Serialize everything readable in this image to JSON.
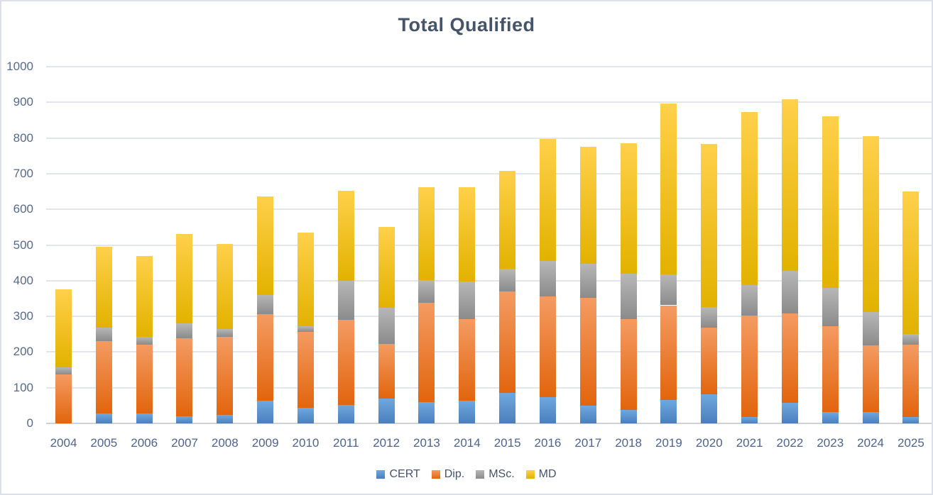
{
  "chart": {
    "title": "Total Qualified"
  },
  "chart_data": {
    "type": "bar",
    "stacked": true,
    "title": "Total Qualified",
    "xlabel": "",
    "ylabel": "",
    "ylim": [
      0,
      1000
    ],
    "ytick_interval": 100,
    "grid": true,
    "legend_position": "bottom",
    "categories": [
      "2004",
      "2005",
      "2006",
      "2007",
      "2008",
      "2009",
      "2010",
      "2011",
      "2012",
      "2013",
      "2014",
      "2015",
      "2016",
      "2017",
      "2018",
      "2019",
      "2020",
      "2021",
      "2022",
      "2023",
      "2024",
      "2025"
    ],
    "series": [
      {
        "name": "CERT",
        "color": "#5B9BD5",
        "gradient_top": "#6FA8DF",
        "gradient_bottom": "#4A7FBC",
        "values": [
          0,
          28,
          28,
          20,
          24,
          63,
          44,
          52,
          70,
          60,
          63,
          85,
          74,
          50,
          37,
          65,
          82,
          17,
          58,
          32,
          31,
          18
        ]
      },
      {
        "name": "Dip.",
        "color": "#ED7D31",
        "gradient_top": "#F49B62",
        "gradient_bottom": "#E2650D",
        "values": [
          137,
          202,
          193,
          219,
          219,
          244,
          213,
          239,
          153,
          277,
          230,
          284,
          282,
          302,
          256,
          266,
          187,
          285,
          251,
          240,
          187,
          202
        ]
      },
      {
        "name": "MSc.",
        "color": "#A5A5A5",
        "gradient_top": "#B7B7B7",
        "gradient_bottom": "#8B8B8B",
        "values": [
          20,
          38,
          22,
          41,
          22,
          52,
          16,
          108,
          102,
          64,
          105,
          64,
          100,
          96,
          127,
          86,
          58,
          85,
          118,
          108,
          95,
          31
        ]
      },
      {
        "name": "MD",
        "color": "#FFC000",
        "gradient_top": "#FFD04A",
        "gradient_bottom": "#E2B200",
        "values": [
          218,
          227,
          227,
          250,
          237,
          277,
          262,
          253,
          225,
          262,
          265,
          274,
          342,
          327,
          365,
          480,
          456,
          486,
          481,
          480,
          493,
          400
        ]
      }
    ],
    "totals": [
      375,
      495,
      470,
      530,
      502,
      636,
      535,
      652,
      550,
      663,
      663,
      707,
      798,
      775,
      785,
      897,
      783,
      873,
      908,
      860,
      806,
      651
    ]
  }
}
